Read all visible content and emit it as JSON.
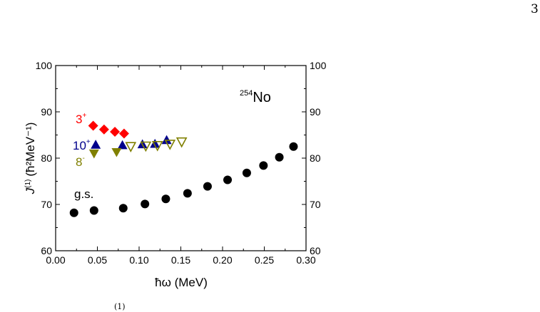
{
  "page_number": "3",
  "caption_fragment": "(1)",
  "colors": {
    "gs": "#000000",
    "band3": "#ff0000",
    "band10": "#00008b",
    "band8": "#808000"
  },
  "chart_data": {
    "type": "scatter",
    "xlabel": "ħω (MeV)",
    "ylabel_main": "J",
    "ylabel_sup": "(1)",
    "ylabel_unit": "(ħ²MeV⁻¹)",
    "xlim": [
      0.0,
      0.3
    ],
    "ylim": [
      60,
      100
    ],
    "xticks": [
      "0.00",
      "0.05",
      "0.10",
      "0.15",
      "0.20",
      "0.25",
      "0.30"
    ],
    "yticks": [
      "60",
      "70",
      "80",
      "90",
      "100"
    ],
    "yticks_right": [
      "60",
      "70",
      "80",
      "90",
      "100"
    ],
    "nucleus": {
      "mass": "254",
      "symbol": "No"
    },
    "series": [
      {
        "name": "g.s.",
        "marker": "circle",
        "color": "#000000",
        "x": [
          0.022,
          0.046,
          0.081,
          0.107,
          0.132,
          0.158,
          0.182,
          0.206,
          0.229,
          0.249,
          0.268,
          0.285
        ],
        "y": [
          68.2,
          68.7,
          69.2,
          70.1,
          71.2,
          72.4,
          73.9,
          75.3,
          76.8,
          78.4,
          80.2,
          82.5
        ]
      },
      {
        "name": "3",
        "parity": "+",
        "marker": "diamond",
        "color": "#ff0000",
        "x": [
          0.045,
          0.058,
          0.071,
          0.082
        ],
        "y": [
          87.0,
          86.2,
          85.7,
          85.3
        ]
      },
      {
        "name": "10",
        "parity": "+",
        "marker": "triangle-up",
        "color": "#00008b",
        "x": [
          0.048,
          0.08,
          0.104,
          0.119,
          0.133
        ],
        "y": [
          82.9,
          82.8,
          83.0,
          83.1,
          83.9
        ]
      },
      {
        "name": "8",
        "parity": "-",
        "marker": "triangle-down-filled",
        "color": "#808000",
        "x": [
          0.046,
          0.073
        ],
        "y": [
          81.0,
          81.3
        ]
      },
      {
        "name": "8",
        "parity": "-",
        "marker": "triangle-down-open",
        "color": "#808000",
        "x": [
          0.09,
          0.108,
          0.122,
          0.137,
          0.151
        ],
        "y": [
          82.5,
          82.6,
          82.7,
          83.0,
          83.5
        ]
      }
    ],
    "grid": false,
    "legend": "inline labels"
  }
}
